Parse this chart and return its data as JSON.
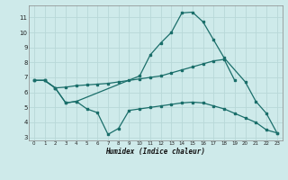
{
  "xlabel": "Humidex (Indice chaleur)",
  "bg_color": "#ceeaea",
  "grid_color": "#b8d8d8",
  "line_color": "#1a6e6a",
  "line_top_x": [
    0,
    1,
    2,
    3,
    4,
    10,
    11,
    12,
    13,
    14,
    15,
    16,
    17,
    18,
    20,
    21,
    22,
    23
  ],
  "line_top_y": [
    6.8,
    6.8,
    6.3,
    5.3,
    5.4,
    7.1,
    8.5,
    9.3,
    10.0,
    11.3,
    11.35,
    10.7,
    9.5,
    8.3,
    6.7,
    5.4,
    4.6,
    3.3
  ],
  "line_mid_x": [
    0,
    1,
    2,
    3,
    4,
    5,
    6,
    7,
    8,
    9,
    10,
    11,
    12,
    13,
    14,
    15,
    16,
    17,
    18,
    19
  ],
  "line_mid_y": [
    6.8,
    6.8,
    6.3,
    6.35,
    6.45,
    6.5,
    6.55,
    6.6,
    6.7,
    6.8,
    6.9,
    7.0,
    7.1,
    7.3,
    7.5,
    7.7,
    7.9,
    8.1,
    8.2,
    6.8
  ],
  "line_bot_x": [
    0,
    1,
    2,
    3,
    4,
    5,
    6,
    7,
    8,
    9,
    10,
    11,
    12,
    13,
    14,
    15,
    16,
    17,
    18,
    19,
    20,
    21,
    22,
    23
  ],
  "line_bot_y": [
    6.8,
    6.8,
    6.3,
    5.3,
    5.4,
    4.9,
    4.65,
    3.2,
    3.6,
    4.8,
    4.9,
    5.0,
    5.1,
    5.2,
    5.3,
    5.35,
    5.3,
    5.1,
    4.9,
    4.6,
    4.3,
    4.0,
    3.5,
    3.3
  ],
  "ylim": [
    2.8,
    11.8
  ],
  "xlim": [
    -0.5,
    23.5
  ],
  "yticks": [
    3,
    4,
    5,
    6,
    7,
    8,
    9,
    10,
    11
  ],
  "xticks": [
    0,
    1,
    2,
    3,
    4,
    5,
    6,
    7,
    8,
    9,
    10,
    11,
    12,
    13,
    14,
    15,
    16,
    17,
    18,
    19,
    20,
    21,
    22,
    23
  ]
}
